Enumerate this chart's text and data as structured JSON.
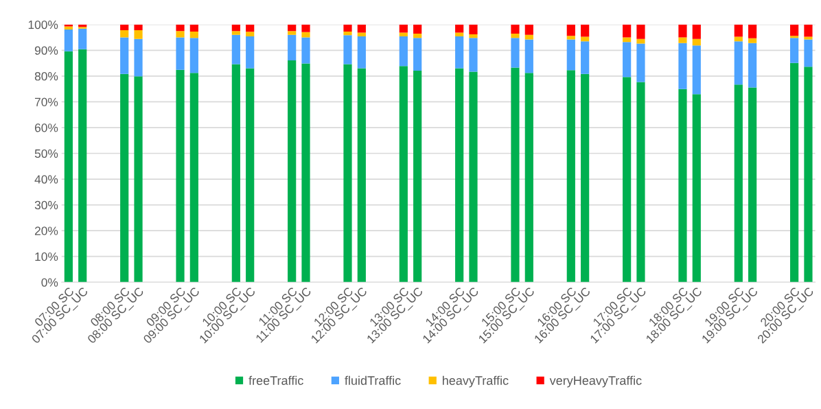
{
  "chart_data": {
    "type": "bar",
    "stacked": true,
    "categories": [
      "07:00 SC",
      "07:00 SC_UC",
      null,
      null,
      "08:00 SC",
      "08:00 SC_UC",
      null,
      null,
      "09:00 SC",
      "09:00 SC_UC",
      null,
      null,
      "10:00 SC",
      "10:00 SC_UC",
      null,
      null,
      "11:00 SC",
      "11:00 SC_UC",
      null,
      null,
      "12:00 SC",
      "12:00 SC_UC",
      null,
      null,
      "13:00 SC",
      "13:00 SC_UC",
      null,
      null,
      "14:00 SC",
      "14:00 SC_UC",
      null,
      null,
      "15:00 SC",
      "15:00 SC_UC",
      null,
      null,
      "16:00 SC",
      "16:00 SC_UC",
      null,
      null,
      "17:00 SC",
      "17:00 SC_UC",
      null,
      null,
      "18:00 SC",
      "18:00 SC_UC",
      null,
      null,
      "19:00 SC",
      "19:00 SC_UC",
      null,
      null,
      "20:00 SC",
      "20:00 SC_UC"
    ],
    "series": [
      {
        "name": "freeTraffic",
        "color": "#00b050",
        "values": [
          89.6,
          90.4,
          null,
          null,
          80.8,
          79.9,
          null,
          null,
          82.4,
          81.2,
          null,
          null,
          84.6,
          83.0,
          null,
          null,
          86.1,
          84.9,
          null,
          null,
          84.6,
          83.0,
          null,
          null,
          83.9,
          82.1,
          null,
          null,
          83.0,
          81.7,
          null,
          null,
          83.3,
          81.2,
          null,
          null,
          82.3,
          80.8,
          null,
          null,
          79.6,
          77.7,
          null,
          null,
          75.0,
          73.0,
          null,
          null,
          76.7,
          75.6,
          null,
          null,
          85.1,
          83.6
        ]
      },
      {
        "name": "fluidTraffic",
        "color": "#4da3ff",
        "values": [
          8.5,
          8.0,
          null,
          null,
          14.2,
          14.5,
          null,
          null,
          12.6,
          13.6,
          null,
          null,
          11.4,
          12.4,
          null,
          null,
          9.9,
          10.1,
          null,
          null,
          11.3,
          12.4,
          null,
          null,
          11.5,
          12.7,
          null,
          null,
          12.4,
          13.1,
          null,
          null,
          11.5,
          13.0,
          null,
          null,
          11.9,
          12.7,
          null,
          null,
          13.6,
          14.9,
          null,
          null,
          17.8,
          18.9,
          null,
          null,
          16.8,
          17.2,
          null,
          null,
          9.7,
          10.6
        ]
      },
      {
        "name": "heavyTraffic",
        "color": "#ffc000",
        "values": [
          1.2,
          0.7,
          null,
          null,
          2.8,
          3.4,
          null,
          null,
          2.5,
          2.5,
          null,
          null,
          1.5,
          1.8,
          null,
          null,
          1.5,
          2.1,
          null,
          null,
          1.4,
          1.5,
          null,
          null,
          1.5,
          1.7,
          null,
          null,
          1.5,
          1.4,
          null,
          null,
          1.7,
          1.8,
          null,
          null,
          1.4,
          1.8,
          null,
          null,
          1.8,
          1.8,
          null,
          null,
          2.2,
          2.5,
          null,
          null,
          1.8,
          1.9,
          null,
          null,
          0.8,
          1.1
        ]
      },
      {
        "name": "veryHeavyTraffic",
        "color": "#ff0000",
        "values": [
          0.7,
          0.9,
          null,
          null,
          2.2,
          2.2,
          null,
          null,
          2.5,
          2.7,
          null,
          null,
          2.5,
          2.8,
          null,
          null,
          2.5,
          2.9,
          null,
          null,
          2.7,
          3.1,
          null,
          null,
          3.1,
          3.5,
          null,
          null,
          3.1,
          3.8,
          null,
          null,
          3.5,
          4.0,
          null,
          null,
          4.4,
          4.7,
          null,
          null,
          5.0,
          5.6,
          null,
          null,
          5.0,
          5.6,
          null,
          null,
          4.7,
          5.3,
          null,
          null,
          4.4,
          4.7
        ]
      }
    ],
    "ylim": [
      0,
      100
    ],
    "yticks": [
      {
        "value": 0,
        "label": "0%"
      },
      {
        "value": 10,
        "label": "10%"
      },
      {
        "value": 20,
        "label": "20%"
      },
      {
        "value": 30,
        "label": "30%"
      },
      {
        "value": 40,
        "label": "40%"
      },
      {
        "value": 50,
        "label": "50%"
      },
      {
        "value": 60,
        "label": "60%"
      },
      {
        "value": 70,
        "label": "70%"
      },
      {
        "value": 80,
        "label": "80%"
      },
      {
        "value": 90,
        "label": "90%"
      },
      {
        "value": 100,
        "label": "100%"
      }
    ],
    "grid": "y",
    "legend": "bottom"
  }
}
